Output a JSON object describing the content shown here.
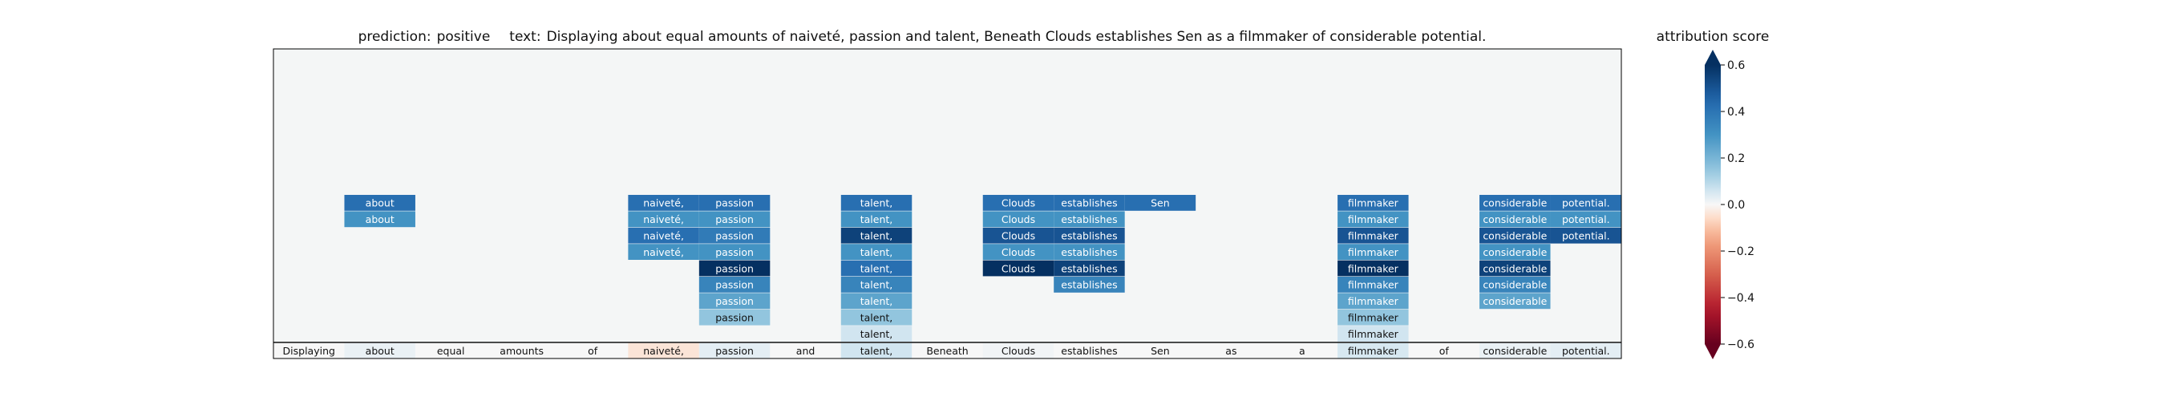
{
  "chart_data": {
    "type": "heatmap",
    "title_prediction_label": "prediction:",
    "title_prediction_value": "positive",
    "title_text_label": "text:",
    "title_text_value": "Displaying about equal amounts of naiveté, passion and talent, Beneath Clouds establishes Sen as a filmmaker of considerable potential.",
    "tokens": [
      "Displaying",
      "about",
      "equal",
      "amounts",
      "of",
      "naiveté,",
      "passion",
      "and",
      "talent,",
      "Beneath",
      "Clouds",
      "establishes",
      "Sen",
      "as",
      "a",
      "filmmaker",
      "of",
      "considerable",
      "potential."
    ],
    "baseline_scores": [
      0.0,
      0.02,
      0.0,
      0.0,
      0.0,
      -0.04,
      0.03,
      0.0,
      0.06,
      0.0,
      0.01,
      0.0,
      0.0,
      0.0,
      0.0,
      0.05,
      0.0,
      0.02,
      0.03
    ],
    "columns": [
      {
        "token_index": 1,
        "scores": [
          0.42,
          0.3
        ]
      },
      {
        "token_index": 5,
        "scores": [
          0.42,
          0.3,
          0.42,
          0.3
        ]
      },
      {
        "token_index": 6,
        "scores": [
          0.42,
          0.3,
          0.38,
          0.3,
          0.6,
          0.35,
          0.25,
          0.15
        ]
      },
      {
        "token_index": 8,
        "scores": [
          0.42,
          0.3,
          0.55,
          0.3,
          0.42,
          0.35,
          0.25,
          0.15,
          0.06
        ]
      },
      {
        "token_index": 10,
        "scores": [
          0.42,
          0.3,
          0.5,
          0.3,
          0.6
        ]
      },
      {
        "token_index": 11,
        "scores": [
          0.42,
          0.3,
          0.5,
          0.3,
          0.55,
          0.35
        ]
      },
      {
        "token_index": 12,
        "scores": [
          0.42
        ]
      },
      {
        "token_index": 15,
        "scores": [
          0.42,
          0.3,
          0.5,
          0.3,
          0.6,
          0.35,
          0.25,
          0.15,
          0.06
        ]
      },
      {
        "token_index": 17,
        "scores": [
          0.42,
          0.3,
          0.5,
          0.3,
          0.55,
          0.35,
          0.25
        ]
      },
      {
        "token_index": 18,
        "scores": [
          0.42,
          0.3,
          0.5
        ]
      }
    ],
    "colorbar": {
      "title": "attribution score",
      "range": [
        -0.6,
        0.6
      ],
      "ticks": [
        0.6,
        0.4,
        0.2,
        0.0,
        -0.2,
        -0.4,
        -0.6
      ],
      "tick_labels": [
        "0.6",
        "0.4",
        "0.2",
        "0.0",
        "−0.2",
        "−0.4",
        "−0.6"
      ],
      "colormap": "RdBu"
    }
  }
}
